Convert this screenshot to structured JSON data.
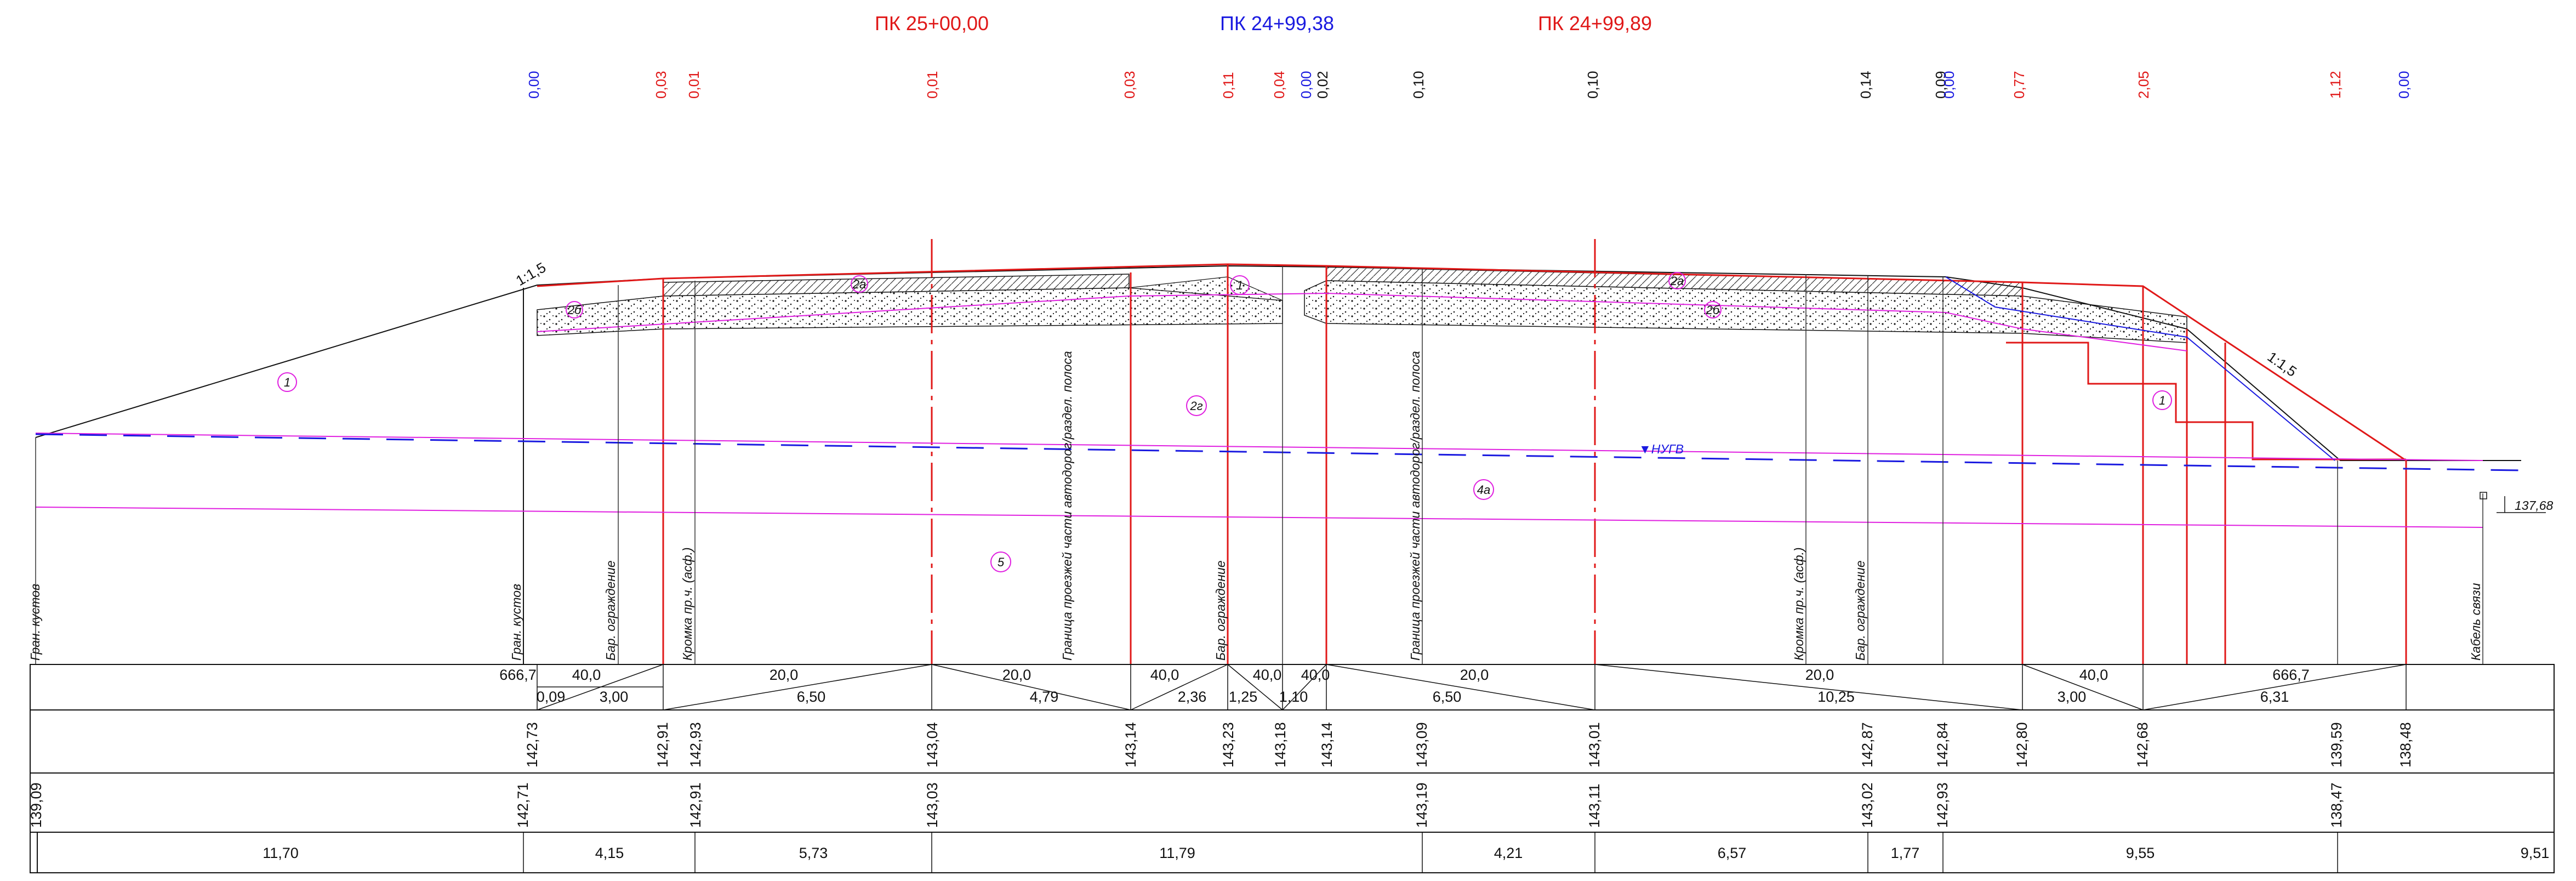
{
  "colors": {
    "red": "#e01818",
    "blue": "#1a1ae0",
    "magenta": "#e020e0",
    "black": "#111111",
    "grey": "#555555"
  },
  "titles": {
    "pk_left": "ПК 25+00,00",
    "pk_center": "ПК 24+99,38",
    "pk_right": "ПК 24+99,89"
  },
  "top_values": [
    {
      "id": "t1",
      "text": "0,00",
      "color": "blue"
    },
    {
      "id": "t2",
      "text": "0,03",
      "color": "red"
    },
    {
      "id": "t3",
      "text": "0,01",
      "color": "red"
    },
    {
      "id": "t4",
      "text": "0,01",
      "color": "red"
    },
    {
      "id": "t5",
      "text": "0,03",
      "color": "red"
    },
    {
      "id": "t6",
      "text": "0,11",
      "color": "red"
    },
    {
      "id": "t7",
      "text": "0,04",
      "color": "red"
    },
    {
      "id": "t8",
      "text": "0,00",
      "color": "blue"
    },
    {
      "id": "t9",
      "text": "0,02",
      "color": "black"
    },
    {
      "id": "t10",
      "text": "0,10",
      "color": "black"
    },
    {
      "id": "t11",
      "text": "0,10",
      "color": "black"
    },
    {
      "id": "t12",
      "text": "0,14",
      "color": "black"
    },
    {
      "id": "t13",
      "text": "0,09",
      "color": "black"
    },
    {
      "id": "t14",
      "text": "0,00",
      "color": "blue"
    },
    {
      "id": "t15",
      "text": "0,77",
      "color": "red"
    },
    {
      "id": "t16",
      "text": "2,05",
      "color": "red"
    },
    {
      "id": "t17",
      "text": "1,12",
      "color": "red"
    },
    {
      "id": "t18",
      "text": "0,00",
      "color": "blue"
    }
  ],
  "slopes": {
    "left": "1:1,5",
    "right": "1:1,5"
  },
  "layers": {
    "l1": "1",
    "l2b": "2б",
    "l2a": "2а",
    "l2g": "2г",
    "l4a": "4а",
    "l5": "5"
  },
  "water_label": "▼НУГВ",
  "ground_mark": "137,68",
  "vertical_labels": {
    "v1": "Гран. кустов",
    "v2": "Гран. кустов",
    "v3": "Бар. ограждение",
    "v4": "Кромка пр.ч. (асф.)",
    "v5": "Граница проезжей части автодорог/раздел. полоса",
    "v6": "Бар. ограждение",
    "v7": "Граница проезжей части автодорог/раздел. полоса",
    "v8": "Кромка пр.ч. (асф.)",
    "v9": "Бар. ограждение",
    "v10": "Кабель связи"
  },
  "row1": {
    "r1a": "666,7",
    "r1b": "40,0",
    "r1c": "20,0",
    "r1d": "20,0",
    "r1e": "40,0",
    "r1f": "40,0",
    "r1g": "40,0",
    "r1h": "20,0",
    "r1i": "20,0",
    "r1j": "40,0",
    "r1k": "666,7",
    "r1l": "0,09",
    "r1m": "3,00",
    "r1n": "6,50",
    "r1o": "4,79",
    "r1p": "2,36",
    "r1q": "1,25",
    "r1r": "1,10",
    "r1s": "6,50",
    "r1t": "10,25",
    "r1u": "3,00",
    "r1v": "6,31"
  },
  "row2": {
    "e1": "142,73",
    "e2": "142,91",
    "e3": "142,93",
    "e4": "143,04",
    "e5": "143,14",
    "e6": "143,23",
    "e7": "143,18",
    "e8": "143,14",
    "e9": "143,09",
    "e10": "143,01",
    "e11": "142,87",
    "e12": "142,84",
    "e13": "142,80",
    "e14": "142,68",
    "e15": "139,59",
    "e16": "138,48"
  },
  "row3": {
    "g1": "139,09",
    "g2": "142,71",
    "g3": "142,91",
    "g4": "143,03",
    "g5": "143,19",
    "g6": "143,11",
    "g7": "143,02",
    "g8": "142,93",
    "g9": "138,47"
  },
  "row4": {
    "d1": "11,70",
    "d2": "4,15",
    "d3": "5,73",
    "d4": "11,79",
    "d5": "4,21",
    "d6": "6,57",
    "d7": "1,77",
    "d8": "9,55",
    "d9": "9,51"
  }
}
